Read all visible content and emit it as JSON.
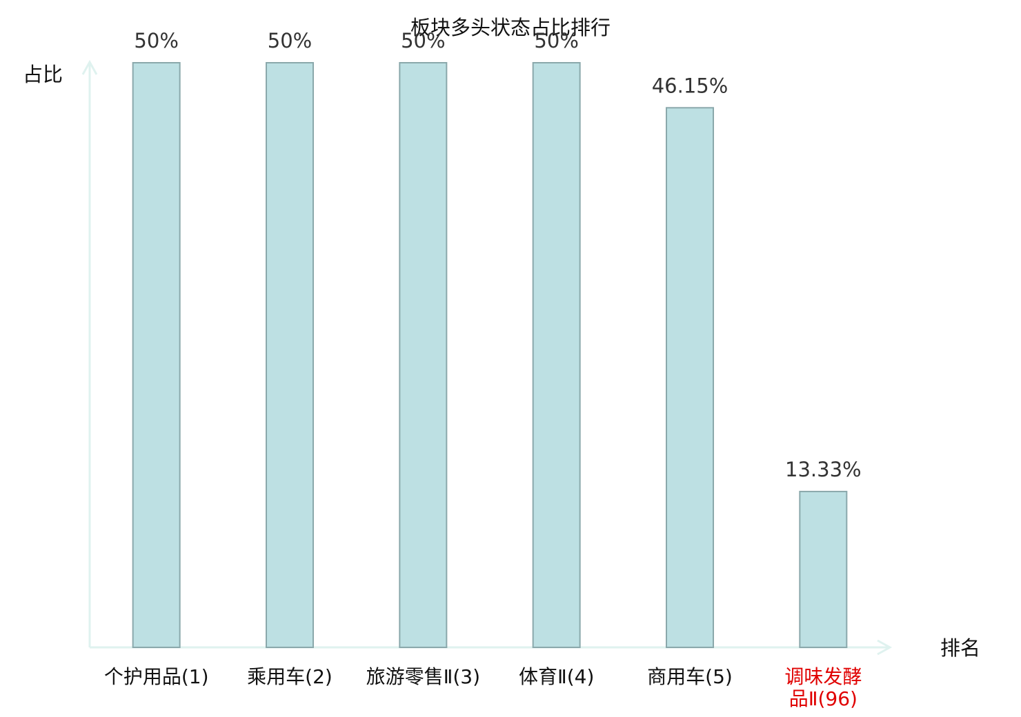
{
  "chart_data": {
    "type": "bar",
    "title": "板块多头状态占比排行",
    "x_label": "排名",
    "y_label": "占比",
    "categories": [
      "个护用品(1)",
      "乘用车(2)",
      "旅游零售Ⅱ(3)",
      "体育Ⅱ(4)",
      "商用车(5)",
      "调味发酵品Ⅱ(96)"
    ],
    "values": [
      50,
      50,
      50,
      50,
      46.15,
      13.33
    ],
    "value_labels": [
      "50%",
      "50%",
      "50%",
      "50%",
      "46.15%",
      "13.33%"
    ],
    "color": "#bde0e3",
    "edge_color": "#8aa8ab",
    "axis_color": "#dff2ef",
    "label_colors": [
      "#111111",
      "#111111",
      "#111111",
      "#111111",
      "#111111",
      "#e00000"
    ],
    "ylim": [
      0,
      50
    ]
  }
}
